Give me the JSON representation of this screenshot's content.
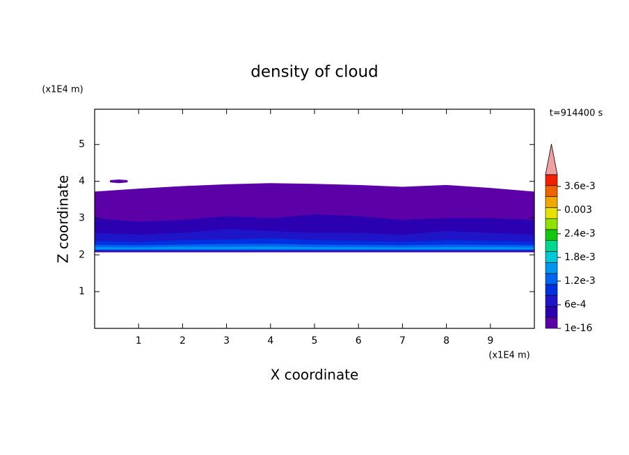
{
  "chart_data": {
    "type": "contour",
    "title": "density of cloud",
    "xlabel": "X coordinate",
    "ylabel": "Z coordinate",
    "xunit": "(x1E4 m)",
    "yunit": "(x1E4 m)",
    "time_label": "t=914400 s",
    "xlim": [
      0,
      10
    ],
    "ylim": [
      0,
      5.96
    ],
    "xticks": [
      1,
      2,
      3,
      4,
      5,
      6,
      7,
      8,
      9
    ],
    "yticks": [
      1,
      2,
      3,
      4,
      5
    ],
    "regions": [
      {
        "level": 0,
        "x": [
          0,
          1,
          2,
          3,
          4,
          5,
          6,
          7,
          8,
          9,
          10
        ],
        "top": [
          3.72,
          3.8,
          3.87,
          3.92,
          3.95,
          3.93,
          3.9,
          3.85,
          3.9,
          3.82,
          3.72
        ],
        "bottom": [
          2.07,
          2.07,
          2.07,
          2.07,
          2.07,
          2.07,
          2.07,
          2.07,
          2.07,
          2.07,
          2.07
        ]
      },
      {
        "level": 0,
        "x": [
          0.35,
          0.55,
          0.75
        ],
        "top": [
          4.03,
          4.05,
          4.03
        ],
        "bottom": [
          3.97,
          3.95,
          3.97
        ]
      },
      {
        "level": 1,
        "x": [
          0,
          1,
          2,
          3,
          4,
          5,
          6,
          7,
          8,
          9,
          10
        ],
        "top": [
          3.0,
          2.9,
          2.95,
          3.05,
          3.0,
          3.1,
          3.05,
          2.95,
          3.0,
          3.0,
          2.95
        ],
        "bottom": [
          2.09,
          2.09,
          2.09,
          2.09,
          2.09,
          2.09,
          2.09,
          2.09,
          2.09,
          2.09,
          2.09
        ]
      },
      {
        "level": 2,
        "x": [
          0,
          1,
          2,
          3,
          4,
          5,
          6,
          7,
          8,
          9,
          10
        ],
        "top": [
          2.6,
          2.55,
          2.6,
          2.7,
          2.65,
          2.6,
          2.6,
          2.55,
          2.65,
          2.6,
          2.55
        ],
        "bottom": [
          2.1,
          2.1,
          2.1,
          2.1,
          2.1,
          2.1,
          2.1,
          2.1,
          2.1,
          2.1,
          2.1
        ]
      },
      {
        "level": 3,
        "x": [
          0,
          1,
          2,
          3,
          4,
          5,
          6,
          7,
          8,
          9,
          10
        ],
        "top": [
          2.38,
          2.35,
          2.4,
          2.42,
          2.45,
          2.4,
          2.38,
          2.35,
          2.4,
          2.38,
          2.35
        ],
        "bottom": [
          2.12,
          2.12,
          2.12,
          2.12,
          2.12,
          2.12,
          2.12,
          2.12,
          2.12,
          2.12,
          2.12
        ]
      },
      {
        "level": 4,
        "x": [
          0,
          1,
          2,
          3,
          4,
          5,
          6,
          7,
          8,
          9,
          10
        ],
        "top": [
          2.27,
          2.26,
          2.28,
          2.3,
          2.3,
          2.28,
          2.27,
          2.26,
          2.28,
          2.27,
          2.26
        ],
        "bottom": [
          2.13,
          2.13,
          2.13,
          2.13,
          2.13,
          2.13,
          2.13,
          2.13,
          2.13,
          2.13,
          2.13
        ]
      },
      {
        "level": 5,
        "x": [
          0,
          1,
          2,
          3,
          4,
          5,
          6,
          7,
          8,
          9,
          10
        ],
        "top": [
          2.21,
          2.2,
          2.22,
          2.22,
          2.23,
          2.21,
          2.21,
          2.2,
          2.21,
          2.21,
          2.2
        ],
        "bottom": [
          2.15,
          2.15,
          2.15,
          2.15,
          2.15,
          2.15,
          2.15,
          2.15,
          2.15,
          2.15,
          2.15
        ]
      }
    ],
    "clim": [
      0,
      0.0039
    ],
    "colors": [
      "#5c00a8",
      "#2a00b0",
      "#1e14c8",
      "#0030e0",
      "#0064f0",
      "#0096f0",
      "#00c8d8",
      "#00d890",
      "#10c810",
      "#90e000",
      "#e8e000",
      "#f0a800",
      "#f06400",
      "#f02000",
      "#f0a0a0"
    ],
    "colorbar_ticks": [
      {
        "value": 1e-16,
        "label": "1e-16"
      },
      {
        "value": 0.0006,
        "label": "6e-4"
      },
      {
        "value": 0.0012,
        "label": "1.2e-3"
      },
      {
        "value": 0.0018,
        "label": "1.8e-3"
      },
      {
        "value": 0.0024,
        "label": "2.4e-3"
      },
      {
        "value": 0.003,
        "label": "0.003"
      },
      {
        "value": 0.0036,
        "label": "3.6e-3"
      }
    ]
  }
}
